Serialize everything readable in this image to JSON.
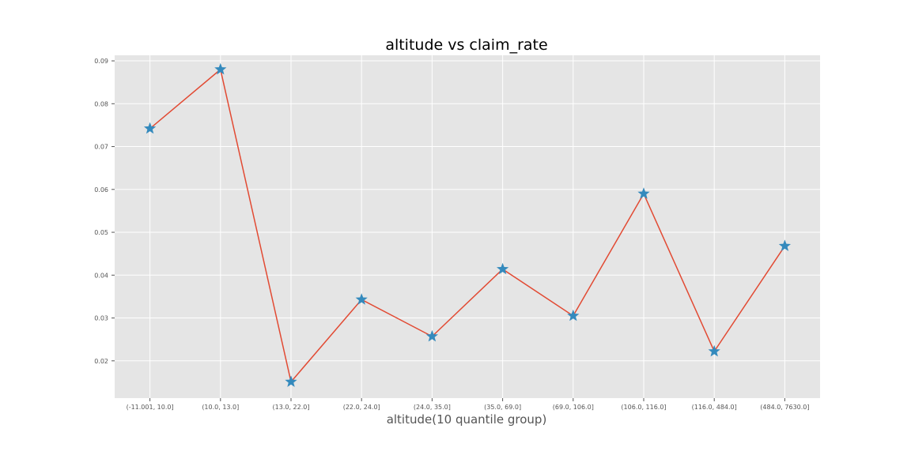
{
  "chart_data": {
    "type": "line",
    "title": "altitude vs claim_rate",
    "xlabel": "altitude(10 quantile group)",
    "ylabel": "",
    "categories": [
      "(-11.001, 10.0]",
      "(10.0, 13.0]",
      "(13.0, 22.0]",
      "(22.0, 24.0]",
      "(24.0, 35.0]",
      "(35.0, 69.0]",
      "(69.0, 106.0]",
      "(106.0, 116.0]",
      "(116.0, 484.0]",
      "(484.0, 7630.0]"
    ],
    "values": [
      0.0742,
      0.088,
      0.0151,
      0.0343,
      0.0257,
      0.0414,
      0.0305,
      0.059,
      0.0222,
      0.0468
    ],
    "yticks": [
      "0.02",
      "0.03",
      "0.04",
      "0.05",
      "0.06",
      "0.07",
      "0.08",
      "0.09"
    ],
    "ylim": [
      0.0113,
      0.0913
    ],
    "marker": "star",
    "grid": true,
    "colors": {
      "background": "#e5e5e5",
      "grid": "#ffffff",
      "line": "#e24a33",
      "marker": "#348abd"
    }
  }
}
